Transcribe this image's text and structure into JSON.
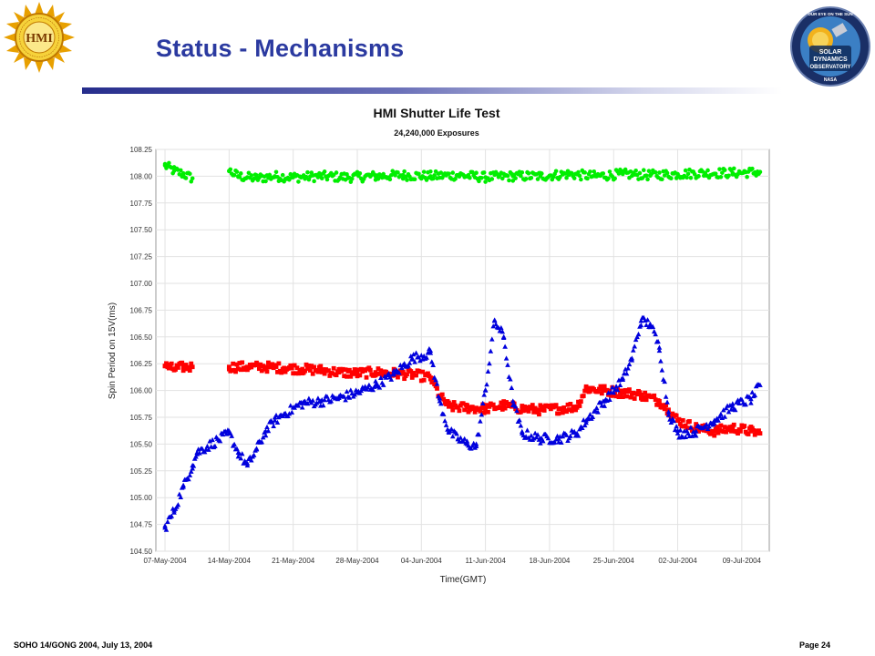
{
  "slide": {
    "title": "Status - Mechanisms",
    "footer_left": "SOHO 14/GONG 2004, July 13, 2004",
    "footer_right": "Page 24",
    "left_logo": {
      "icon": "hmi-sun-logo-icon",
      "text": "HMI",
      "ring_text": "Helioseismic & Magnetic Imager"
    },
    "right_logo": {
      "icon": "sdo-mission-patch-icon",
      "text_lines": [
        "SOLAR",
        "DYNAMICS",
        "OBSERVATORY"
      ],
      "top_text": "OUR EYE ON THE SUN",
      "bottom_text": "NASA"
    },
    "accent_color": "#2b3aa0"
  },
  "chart_data": {
    "type": "scatter",
    "title": "HMI Shutter Life Test",
    "subtitle": "24,240,000 Exposures",
    "xlabel": "Time(GMT)",
    "ylabel": "Spin Period on 15V(ms)",
    "x_ticks": [
      "07-May-2004",
      "14-May-2004",
      "21-May-2004",
      "28-May-2004",
      "04-Jun-2004",
      "11-Jun-2004",
      "18-Jun-2004",
      "25-Jun-2004",
      "02-Jul-2004",
      "09-Jul-2004"
    ],
    "xlim": [
      "2004-05-06",
      "2004-07-12"
    ],
    "ylim": [
      104.5,
      108.25
    ],
    "y_ticks": [
      "104.50",
      "104.75",
      "105.00",
      "105.25",
      "105.50",
      "105.75",
      "106.00",
      "106.25",
      "106.50",
      "106.75",
      "107.00",
      "107.25",
      "107.50",
      "107.75",
      "108.00",
      "108.25"
    ],
    "grid": true,
    "legend": "none",
    "series": [
      {
        "color": "#00ee00",
        "marker": "circle",
        "points": [
          [
            "2004-05-07",
            108.1
          ],
          [
            "2004-05-08",
            108.05
          ],
          [
            "2004-05-09",
            108.02
          ],
          [
            "2004-05-10",
            107.98
          ],
          [
            "2004-05-14",
            108.05
          ],
          [
            "2004-05-15",
            108.0
          ],
          [
            "2004-05-17",
            107.98
          ],
          [
            "2004-05-19",
            108.0
          ],
          [
            "2004-05-21",
            107.99
          ],
          [
            "2004-05-24",
            108.0
          ],
          [
            "2004-05-27",
            107.99
          ],
          [
            "2004-05-30",
            108.0
          ],
          [
            "2004-06-02",
            108.01
          ],
          [
            "2004-06-05",
            108.0
          ],
          [
            "2004-06-08",
            108.01
          ],
          [
            "2004-06-11",
            107.99
          ],
          [
            "2004-06-14",
            108.0
          ],
          [
            "2004-06-17",
            108.0
          ],
          [
            "2004-06-20",
            108.02
          ],
          [
            "2004-06-23",
            108.0
          ],
          [
            "2004-06-26",
            108.02
          ],
          [
            "2004-06-29",
            108.01
          ],
          [
            "2004-07-02",
            108.02
          ],
          [
            "2004-07-05",
            108.03
          ],
          [
            "2004-07-08",
            108.03
          ],
          [
            "2004-07-11",
            108.04
          ]
        ]
      },
      {
        "color": "#ff0000",
        "marker": "square",
        "points": [
          [
            "2004-05-07",
            106.23
          ],
          [
            "2004-05-08",
            106.2
          ],
          [
            "2004-05-09",
            106.22
          ],
          [
            "2004-05-10",
            106.22
          ],
          [
            "2004-05-14",
            106.22
          ],
          [
            "2004-05-16",
            106.22
          ],
          [
            "2004-05-18",
            106.22
          ],
          [
            "2004-05-20",
            106.21
          ],
          [
            "2004-05-22",
            106.2
          ],
          [
            "2004-05-24",
            106.19
          ],
          [
            "2004-05-26",
            106.17
          ],
          [
            "2004-05-28",
            106.16
          ],
          [
            "2004-05-30",
            106.17
          ],
          [
            "2004-06-01",
            106.16
          ],
          [
            "2004-06-03",
            106.15
          ],
          [
            "2004-06-05",
            106.12
          ],
          [
            "2004-06-06",
            105.95
          ],
          [
            "2004-06-07",
            105.85
          ],
          [
            "2004-06-09",
            105.84
          ],
          [
            "2004-06-11",
            105.83
          ],
          [
            "2004-06-13",
            105.86
          ],
          [
            "2004-06-15",
            105.83
          ],
          [
            "2004-06-17",
            105.82
          ],
          [
            "2004-06-19",
            105.83
          ],
          [
            "2004-06-21",
            105.85
          ],
          [
            "2004-06-22",
            106.02
          ],
          [
            "2004-06-24",
            106.0
          ],
          [
            "2004-06-26",
            105.98
          ],
          [
            "2004-06-28",
            105.96
          ],
          [
            "2004-06-30",
            105.9
          ],
          [
            "2004-07-01",
            105.82
          ],
          [
            "2004-07-02",
            105.72
          ],
          [
            "2004-07-04",
            105.65
          ],
          [
            "2004-07-06",
            105.62
          ],
          [
            "2004-07-08",
            105.65
          ],
          [
            "2004-07-10",
            105.62
          ],
          [
            "2004-07-11",
            105.6
          ]
        ]
      },
      {
        "color": "#0000dd",
        "marker": "triangle",
        "points": [
          [
            "2004-05-07",
            104.72
          ],
          [
            "2004-05-08",
            104.88
          ],
          [
            "2004-05-09",
            105.1
          ],
          [
            "2004-05-10",
            105.3
          ],
          [
            "2004-05-10.5",
            105.42
          ],
          [
            "2004-05-14",
            105.6
          ],
          [
            "2004-05-15",
            105.42
          ],
          [
            "2004-05-16",
            105.3
          ],
          [
            "2004-05-17",
            105.45
          ],
          [
            "2004-05-18",
            105.62
          ],
          [
            "2004-05-19",
            105.72
          ],
          [
            "2004-05-20",
            105.78
          ],
          [
            "2004-05-22",
            105.88
          ],
          [
            "2004-05-24",
            105.9
          ],
          [
            "2004-05-26",
            105.93
          ],
          [
            "2004-05-28",
            105.98
          ],
          [
            "2004-05-30",
            106.05
          ],
          [
            "2004-06-01",
            106.15
          ],
          [
            "2004-06-03",
            106.3
          ],
          [
            "2004-06-05",
            106.35
          ],
          [
            "2004-06-06",
            105.9
          ],
          [
            "2004-06-07",
            105.62
          ],
          [
            "2004-06-08",
            105.55
          ],
          [
            "2004-06-09",
            105.5
          ],
          [
            "2004-06-10",
            105.48
          ],
          [
            "2004-06-11",
            106.0
          ],
          [
            "2004-06-12",
            106.65
          ],
          [
            "2004-06-13",
            106.5
          ],
          [
            "2004-06-14",
            105.9
          ],
          [
            "2004-06-15",
            105.6
          ],
          [
            "2004-06-17",
            105.55
          ],
          [
            "2004-06-19",
            105.55
          ],
          [
            "2004-06-21",
            105.6
          ],
          [
            "2004-06-22",
            105.72
          ],
          [
            "2004-06-24",
            105.9
          ],
          [
            "2004-06-26",
            106.1
          ],
          [
            "2004-06-27",
            106.3
          ],
          [
            "2004-06-28",
            106.65
          ],
          [
            "2004-06-29",
            106.62
          ],
          [
            "2004-06-30",
            106.4
          ],
          [
            "2004-07-01",
            105.8
          ],
          [
            "2004-07-02",
            105.6
          ],
          [
            "2004-07-04",
            105.62
          ],
          [
            "2004-07-06",
            105.72
          ],
          [
            "2004-07-08",
            105.85
          ],
          [
            "2004-07-10",
            105.92
          ],
          [
            "2004-07-11",
            106.05
          ]
        ]
      }
    ]
  }
}
